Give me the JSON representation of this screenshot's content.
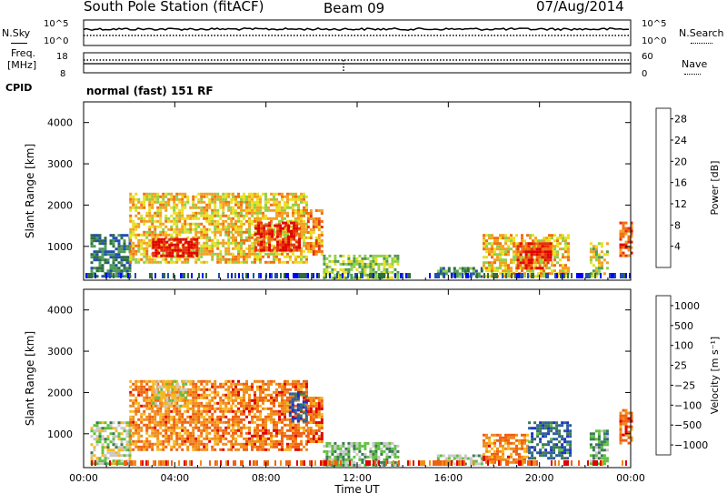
{
  "header": {
    "station": "South Pole Station (fitACF)",
    "beam": "Beam 09",
    "date": "07/Aug/2014"
  },
  "noise_panel": {
    "left_label": "N.Sky",
    "right_label": "N.Search",
    "tick_top": "10^5",
    "tick_bottom": "10^0"
  },
  "freq_panel": {
    "left_label_line1": "Freq.",
    "left_label_line2": "[MHz]",
    "left_tick_top": "18",
    "left_tick_bottom": "8",
    "right_tick_top": "60",
    "right_tick_bottom": "0",
    "right_label": "Nave"
  },
  "cpid": {
    "label": "CPID",
    "value": "normal (fast) 151 RF"
  },
  "colors": {
    "power_scale": [
      "#0000ff",
      "#1f4fb4",
      "#2e6e3c",
      "#4e9a56",
      "#8fd04a",
      "#e8e020",
      "#f4a020",
      "#f07010",
      "#e83010",
      "#e00000"
    ],
    "velocity_scale": [
      "#e00000",
      "#f06010",
      "#f08c18",
      "#f8b820",
      "#c8c8c8",
      "#60c040",
      "#3a7a52",
      "#2c5ea0",
      "#2030c0"
    ]
  },
  "chart_data": [
    {
      "type": "heatmap",
      "panel": "power",
      "ylabel": "Slant Range [km]",
      "xlabel": "",
      "ylim": [
        180,
        4500
      ],
      "xlim_hours": [
        0,
        24
      ],
      "yticks": [
        "1000",
        "2000",
        "3000",
        "4000"
      ],
      "xticks": [
        "00:00",
        "04:00",
        "08:00",
        "12:00",
        "16:00",
        "20:00",
        "00:00"
      ],
      "colorbar": {
        "label": "Power [dB]",
        "ticks": [
          "4",
          "8",
          "12",
          "16",
          "20",
          "24",
          "28"
        ],
        "range": [
          0,
          30
        ]
      },
      "echo_regions": [
        {
          "t0": 0.3,
          "t1": 2.0,
          "r0": 300,
          "r1": 1300,
          "level": 0.25
        },
        {
          "t0": 2.0,
          "t1": 6.5,
          "r0": 600,
          "r1": 2300,
          "level": 0.6
        },
        {
          "t0": 3.0,
          "t1": 5.0,
          "r0": 750,
          "r1": 1200,
          "level": 0.95
        },
        {
          "t0": 6.5,
          "t1": 9.8,
          "r0": 600,
          "r1": 2300,
          "level": 0.6
        },
        {
          "t0": 7.5,
          "t1": 9.5,
          "r0": 900,
          "r1": 1600,
          "level": 0.9
        },
        {
          "t0": 9.8,
          "t1": 10.5,
          "r0": 800,
          "r1": 1900,
          "level": 0.7
        },
        {
          "t0": 10.5,
          "t1": 13.8,
          "r0": 250,
          "r1": 800,
          "level": 0.45
        },
        {
          "t0": 15.5,
          "t1": 17.5,
          "r0": 250,
          "r1": 500,
          "level": 0.3
        },
        {
          "t0": 17.5,
          "t1": 21.3,
          "r0": 300,
          "r1": 1300,
          "level": 0.6
        },
        {
          "t0": 19.0,
          "t1": 20.5,
          "r0": 500,
          "r1": 1100,
          "level": 0.85
        },
        {
          "t0": 22.2,
          "t1": 23.0,
          "r0": 300,
          "r1": 1100,
          "level": 0.5
        },
        {
          "t0": 23.5,
          "t1": 24.0,
          "r0": 800,
          "r1": 1600,
          "level": 0.8
        }
      ]
    },
    {
      "type": "heatmap",
      "panel": "velocity",
      "ylabel": "Slant Range [km]",
      "xlabel": "Time UT",
      "ylim": [
        180,
        4500
      ],
      "xlim_hours": [
        0,
        24
      ],
      "yticks": [
        "1000",
        "2000",
        "3000",
        "4000"
      ],
      "xticks": [
        "00:00",
        "04:00",
        "08:00",
        "12:00",
        "16:00",
        "20:00",
        "00:00"
      ],
      "colorbar": {
        "label": "Velocity [m s⁻¹]",
        "ticks": [
          "1000",
          "500",
          "100",
          "25",
          "−25",
          "−100",
          "−500",
          "−1000"
        ],
        "range": [
          -1200,
          1200
        ]
      },
      "echo_regions": [
        {
          "t0": 0.3,
          "t1": 2.0,
          "r0": 300,
          "r1": 1300,
          "level": 0.55
        },
        {
          "t0": 2.0,
          "t1": 6.5,
          "r0": 600,
          "r1": 2300,
          "level": 0.25
        },
        {
          "t0": 3.0,
          "t1": 4.5,
          "r0": 1700,
          "r1": 2300,
          "level": 0.45
        },
        {
          "t0": 6.5,
          "t1": 9.8,
          "r0": 600,
          "r1": 2300,
          "level": 0.22
        },
        {
          "t0": 9.0,
          "t1": 9.8,
          "r0": 1300,
          "r1": 2000,
          "level": 0.85
        },
        {
          "t0": 9.8,
          "t1": 10.5,
          "r0": 800,
          "r1": 1900,
          "level": 0.2
        },
        {
          "t0": 10.5,
          "t1": 13.8,
          "r0": 250,
          "r1": 800,
          "level": 0.62
        },
        {
          "t0": 15.5,
          "t1": 17.5,
          "r0": 250,
          "r1": 500,
          "level": 0.55
        },
        {
          "t0": 17.5,
          "t1": 19.5,
          "r0": 300,
          "r1": 1000,
          "level": 0.25
        },
        {
          "t0": 19.5,
          "t1": 21.3,
          "r0": 400,
          "r1": 1300,
          "level": 0.8
        },
        {
          "t0": 22.2,
          "t1": 23.0,
          "r0": 300,
          "r1": 1100,
          "level": 0.65
        },
        {
          "t0": 23.5,
          "t1": 24.0,
          "r0": 800,
          "r1": 1600,
          "level": 0.2
        }
      ]
    }
  ]
}
